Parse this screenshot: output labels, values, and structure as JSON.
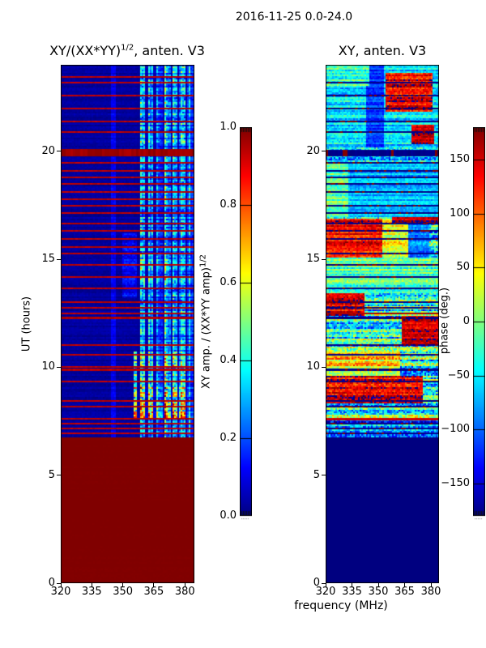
{
  "figure": {
    "title": "2016-11-25 0.0-24.0"
  },
  "xlabel": "frequency (MHz)",
  "ylabel": "UT (hours)",
  "chart_data": [
    {
      "id": "amp",
      "type": "heatmap",
      "title_main": "XY/(XX*YY)",
      "title_sup": "1/2",
      "title_tail": ", anten. V3",
      "colormap": "jet",
      "xlim": [
        320,
        384.6
      ],
      "ylim": [
        0,
        24
      ],
      "vmin": 0.0,
      "vmax": 1.0,
      "xticks": [
        "320",
        "335",
        "350",
        "365",
        "380"
      ],
      "xtick_values": [
        320,
        335,
        350,
        365,
        380
      ],
      "yticks": [
        "0",
        "5",
        "10",
        "15",
        "20"
      ],
      "ytick_values": [
        0,
        5,
        10,
        15,
        20
      ],
      "colorbar": {
        "label_main": "XY amp. / (XX*YY amp)",
        "label_sup": "1/2",
        "ticks": [
          "0.0",
          "0.2",
          "0.4",
          "0.6",
          "0.8",
          "1.0"
        ],
        "tick_values": [
          0.0,
          0.2,
          0.4,
          0.6,
          0.8,
          1.0
        ]
      },
      "regions_key": "[t_start,t_end,f_start,f_end,value,noise,streaky]",
      "regions": [
        [
          0,
          6.78,
          320,
          385,
          1.0,
          0.005,
          0
        ],
        [
          6.78,
          24,
          320,
          385,
          0.03,
          0.03,
          0
        ],
        [
          6.78,
          24,
          344,
          346.5,
          0.11,
          0.05,
          0
        ],
        [
          13.2,
          16.2,
          350,
          357,
          0.12,
          0.09,
          0
        ],
        [
          6.78,
          24,
          357,
          385,
          0.3,
          0.22,
          1
        ],
        [
          7.55,
          9.2,
          355,
          381,
          0.55,
          0.4,
          1
        ],
        [
          9.2,
          10.7,
          355,
          380,
          0.42,
          0.3,
          1
        ],
        [
          13.4,
          15.3,
          357,
          373,
          0.38,
          0.28,
          1
        ],
        [
          20.3,
          24,
          357,
          382,
          0.32,
          0.25,
          1
        ]
      ],
      "stripes_key": "[t,height_hours,value]",
      "stripes": [
        [
          6.9,
          0.09,
          0.94
        ],
        [
          7.13,
          0.08,
          0.94
        ],
        [
          7.34,
          0.08,
          0.94
        ],
        [
          7.56,
          0.09,
          0.94
        ],
        [
          8.12,
          0.09,
          0.94
        ],
        [
          8.38,
          0.08,
          0.94
        ],
        [
          9.28,
          0.09,
          0.94
        ],
        [
          9.82,
          0.1,
          0.94
        ],
        [
          9.98,
          0.08,
          0.94
        ],
        [
          10.52,
          0.09,
          0.94
        ],
        [
          10.97,
          0.08,
          0.94
        ],
        [
          12.25,
          0.1,
          0.95
        ],
        [
          12.44,
          0.09,
          0.94
        ],
        [
          12.68,
          0.09,
          0.94
        ],
        [
          12.98,
          0.08,
          0.94
        ],
        [
          13.58,
          0.09,
          0.94
        ],
        [
          14.14,
          0.08,
          0.94
        ],
        [
          14.68,
          0.09,
          0.94
        ],
        [
          15.22,
          0.09,
          0.94
        ],
        [
          15.52,
          0.08,
          0.94
        ],
        [
          15.88,
          0.09,
          0.94
        ],
        [
          16.28,
          0.08,
          0.94
        ],
        [
          16.58,
          0.09,
          0.94
        ],
        [
          17.08,
          0.09,
          0.94
        ],
        [
          17.44,
          0.08,
          0.94
        ],
        [
          17.74,
          0.09,
          0.94
        ],
        [
          18.08,
          0.08,
          0.94
        ],
        [
          18.44,
          0.09,
          0.94
        ],
        [
          18.74,
          0.08,
          0.94
        ],
        [
          19.04,
          0.09,
          0.94
        ],
        [
          19.42,
          0.08,
          0.94
        ],
        [
          19.78,
          0.33,
          0.97
        ],
        [
          20.83,
          0.09,
          0.94
        ],
        [
          21.33,
          0.08,
          0.94
        ],
        [
          21.93,
          0.09,
          0.94
        ],
        [
          22.53,
          0.08,
          0.94
        ],
        [
          23.13,
          0.09,
          0.94
        ],
        [
          23.38,
          0.08,
          0.94
        ]
      ]
    },
    {
      "id": "phase",
      "type": "heatmap",
      "title_main": "XY, anten. V3",
      "title_sup": "",
      "title_tail": "",
      "colormap": "jet",
      "xlim": [
        320,
        384.6
      ],
      "ylim": [
        0,
        24
      ],
      "vmin": -180,
      "vmax": 180,
      "xticks": [
        "320",
        "335",
        "350",
        "365",
        "380"
      ],
      "xtick_values": [
        320,
        335,
        350,
        365,
        380
      ],
      "yticks": [
        "0",
        "5",
        "10",
        "15",
        "20"
      ],
      "ytick_values": [
        0,
        5,
        10,
        15,
        20
      ],
      "colorbar": {
        "label_main": "phase (deg.)",
        "label_sup": "",
        "ticks": [
          "−150",
          "−100",
          "−50",
          "0",
          "50",
          "100",
          "150"
        ],
        "tick_values": [
          -150,
          -100,
          -50,
          0,
          50,
          100,
          150
        ]
      },
      "regions_key": "[t_start,t_end,f_start,f_end,value,noise,streaky]",
      "regions": [
        [
          0,
          6.78,
          320,
          385,
          -180,
          0,
          0
        ],
        [
          6.78,
          24,
          320,
          385,
          -40,
          125,
          0
        ],
        [
          6.78,
          7.6,
          320,
          385,
          -90,
          100,
          0
        ],
        [
          8.3,
          9.6,
          320,
          375,
          140,
          70,
          0
        ],
        [
          9.6,
          10.7,
          320,
          362,
          50,
          80,
          0
        ],
        [
          10.7,
          12.35,
          320,
          385,
          -30,
          115,
          0
        ],
        [
          11.0,
          12.35,
          363,
          385,
          155,
          45,
          0
        ],
        [
          12.35,
          13.4,
          320,
          342,
          145,
          60,
          0
        ],
        [
          13.4,
          15.05,
          320,
          385,
          -15,
          65,
          0
        ],
        [
          15.05,
          16.9,
          320,
          352,
          135,
          55,
          0
        ],
        [
          15.05,
          16.9,
          352,
          367,
          40,
          65,
          0
        ],
        [
          15.05,
          16.65,
          367,
          379,
          -85,
          45,
          0
        ],
        [
          16.65,
          16.95,
          358,
          385,
          158,
          45,
          0
        ],
        [
          16.95,
          19.45,
          333,
          385,
          -70,
          45,
          0
        ],
        [
          16.95,
          19.45,
          320,
          333,
          -15,
          55,
          0
        ],
        [
          19.45,
          20.15,
          320,
          385,
          -60,
          115,
          0
        ],
        [
          20.15,
          24,
          320,
          385,
          -55,
          55,
          0
        ],
        [
          20.15,
          24,
          343,
          353,
          -115,
          35,
          0
        ],
        [
          20.3,
          21.2,
          369,
          382,
          155,
          40,
          0
        ],
        [
          21.8,
          23.6,
          354,
          381,
          140,
          60,
          0
        ],
        [
          23.0,
          24,
          320,
          345,
          -25,
          60,
          0
        ]
      ],
      "stripes_key": "[t,height_hours,value]",
      "stripes": [
        [
          6.9,
          0.09,
          -177
        ],
        [
          7.13,
          0.08,
          -177
        ],
        [
          7.34,
          0.08,
          -177
        ],
        [
          7.56,
          0.1,
          152
        ],
        [
          8.12,
          0.09,
          -177
        ],
        [
          8.38,
          0.08,
          -177
        ],
        [
          9.28,
          0.09,
          -177
        ],
        [
          9.82,
          0.1,
          -177
        ],
        [
          10.52,
          0.09,
          -177
        ],
        [
          10.97,
          0.08,
          -177
        ],
        [
          12.25,
          0.1,
          -177
        ],
        [
          12.44,
          0.09,
          163
        ],
        [
          12.68,
          0.09,
          -177
        ],
        [
          12.98,
          0.08,
          -177
        ],
        [
          13.58,
          0.09,
          -177
        ],
        [
          14.14,
          0.08,
          -177
        ],
        [
          14.68,
          0.09,
          -177
        ],
        [
          15.22,
          0.09,
          -177
        ],
        [
          15.88,
          0.09,
          -177
        ],
        [
          16.28,
          0.08,
          -177
        ],
        [
          16.58,
          0.09,
          -177
        ],
        [
          17.08,
          0.09,
          -177
        ],
        [
          17.44,
          0.08,
          -177
        ],
        [
          18.08,
          0.08,
          -177
        ],
        [
          18.44,
          0.09,
          -177
        ],
        [
          18.74,
          0.08,
          -177
        ],
        [
          19.04,
          0.09,
          -177
        ],
        [
          19.42,
          0.08,
          -177
        ],
        [
          19.78,
          0.3,
          -177
        ],
        [
          20.83,
          0.09,
          -177
        ],
        [
          21.33,
          0.08,
          -177
        ],
        [
          21.93,
          0.09,
          -177
        ],
        [
          22.53,
          0.08,
          -177
        ],
        [
          23.13,
          0.09,
          -177
        ]
      ]
    }
  ]
}
